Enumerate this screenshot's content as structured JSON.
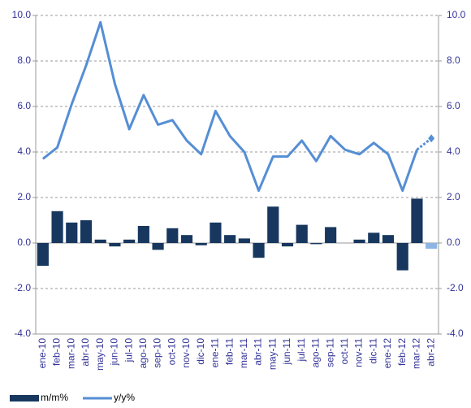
{
  "chart_data": {
    "type": "bar-line",
    "categories": [
      "ene-10",
      "feb-10",
      "mar-10",
      "abr-10",
      "may-10",
      "jun-10",
      "jul-10",
      "ago-10",
      "sep-10",
      "oct-10",
      "nov-10",
      "dic-10",
      "ene-11",
      "feb-11",
      "mar-11",
      "abr-11",
      "may-11",
      "jun-11",
      "jul-11",
      "ago-11",
      "sep-11",
      "oct-11",
      "nov-11",
      "dic-11",
      "ene-12",
      "feb-12",
      "mar-12",
      "abr-12"
    ],
    "series": [
      {
        "name": "m/m%",
        "type": "bar",
        "color": "#17375e",
        "colors": [
          "#17375e",
          "#17375e",
          "#17375e",
          "#17375e",
          "#17375e",
          "#17375e",
          "#17375e",
          "#17375e",
          "#17375e",
          "#17375e",
          "#17375e",
          "#17375e",
          "#17375e",
          "#17375e",
          "#17375e",
          "#17375e",
          "#17375e",
          "#17375e",
          "#17375e",
          "#17375e",
          "#17375e",
          "#17375e",
          "#17375e",
          "#17375e",
          "#17375e",
          "#17375e",
          "#17375e",
          "#8eb4e3"
        ],
        "values": [
          -1.0,
          1.4,
          0.9,
          1.0,
          0.15,
          -0.15,
          0.15,
          0.75,
          -0.3,
          0.65,
          0.35,
          -0.1,
          0.9,
          0.35,
          0.2,
          -0.65,
          1.6,
          -0.15,
          0.8,
          -0.05,
          0.7,
          0.0,
          0.15,
          0.45,
          0.35,
          -1.2,
          1.95,
          -0.25
        ]
      },
      {
        "name": "y/y%",
        "type": "line",
        "color": "#558ed5",
        "last_segment_dashed": true,
        "values": [
          3.7,
          4.2,
          6.1,
          7.8,
          9.7,
          7.0,
          5.0,
          6.5,
          5.2,
          5.4,
          4.5,
          3.9,
          5.8,
          4.7,
          4.0,
          2.3,
          3.8,
          3.8,
          4.5,
          3.6,
          4.7,
          4.1,
          3.9,
          4.4,
          3.9,
          2.3,
          4.1,
          4.6
        ]
      }
    ],
    "ylim": [
      -4,
      10
    ],
    "yticks": [
      {
        "value": -4,
        "label": "-4.0"
      },
      {
        "value": -2,
        "label": "-2.0"
      },
      {
        "value": 0,
        "label": "0.0"
      },
      {
        "value": 2,
        "label": "2.0"
      },
      {
        "value": 4,
        "label": "4.0"
      },
      {
        "value": 6,
        "label": "6.0"
      },
      {
        "value": 8,
        "label": "8.0"
      },
      {
        "value": 10,
        "label": "10.0"
      }
    ],
    "y2lim": [
      -4,
      10
    ],
    "y2ticks": [
      {
        "value": -4,
        "label": "-4.0"
      },
      {
        "value": -2,
        "label": "-2.0"
      },
      {
        "value": 0,
        "label": "0.0"
      },
      {
        "value": 2,
        "label": "2.0"
      },
      {
        "value": 4,
        "label": "4.0"
      },
      {
        "value": 6,
        "label": "6.0"
      },
      {
        "value": 8,
        "label": "8.0"
      },
      {
        "value": 10,
        "label": "10.0"
      }
    ],
    "grid": true,
    "legend": "bottom-left"
  }
}
